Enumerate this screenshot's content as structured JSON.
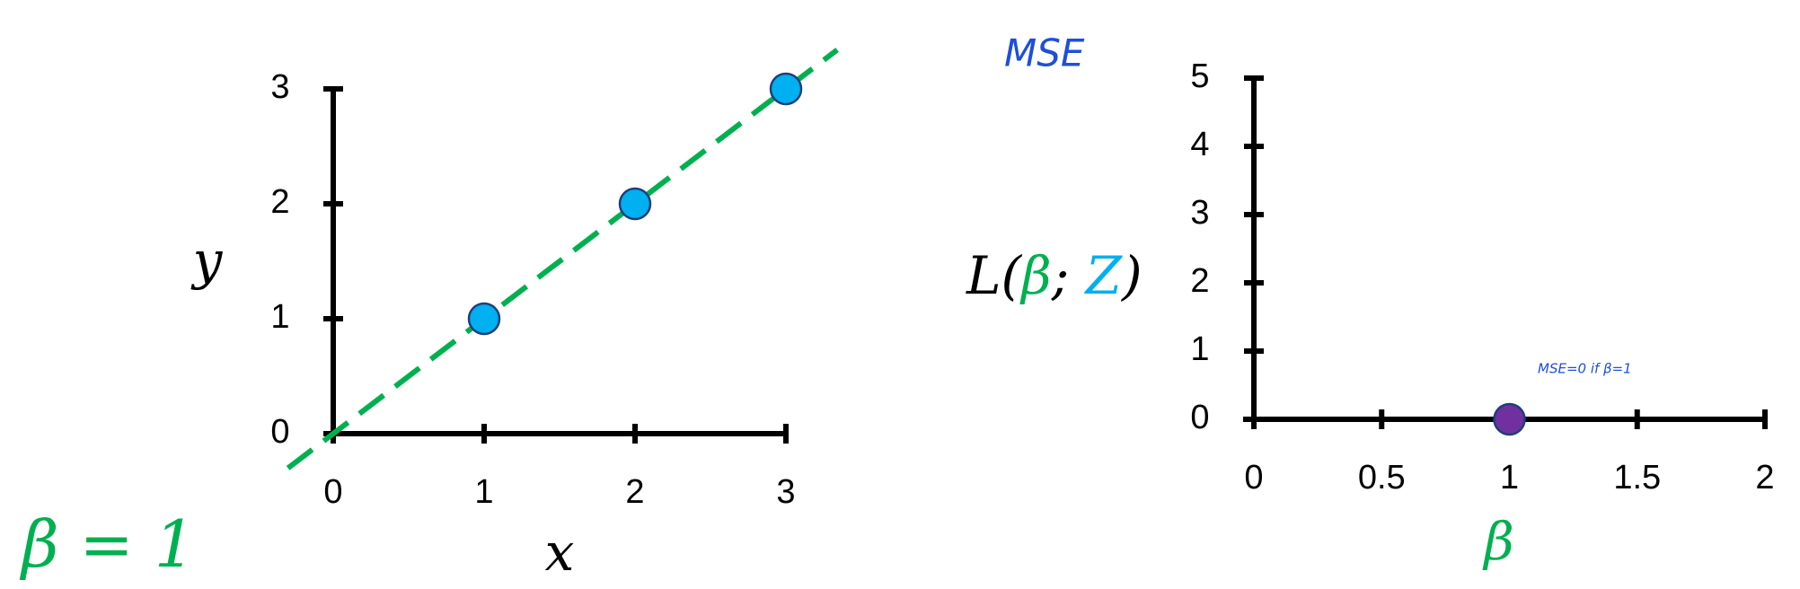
{
  "chart_data": [
    {
      "type": "scatter",
      "x": [
        1,
        2,
        3
      ],
      "y": [
        1,
        2,
        3
      ],
      "color": "#00b0f0",
      "xlim": [
        0,
        3
      ],
      "ylim": [
        0,
        3
      ],
      "xticks": [
        0,
        1,
        2,
        3
      ],
      "yticks": [
        0,
        1,
        2,
        3
      ],
      "xlabel": "x",
      "ylabel": "y",
      "fit_slope": 1,
      "fit_color": "#00b050",
      "fit_label": "β = 1"
    },
    {
      "type": "scatter",
      "x": [
        1
      ],
      "y": [
        0
      ],
      "color": "#7030a0",
      "xlim": [
        0,
        2
      ],
      "ylim": [
        0,
        5
      ],
      "xticks": [
        0,
        0.5,
        1,
        1.5,
        2
      ],
      "yticks": [
        0,
        1,
        2,
        3,
        4,
        5
      ],
      "xlabel": "β",
      "xlabel_color": "#00b050",
      "ylabel_parts": [
        {
          "text": "L(",
          "color": "#000000"
        },
        {
          "text": "β",
          "color": "#00b050"
        },
        {
          "text": "; ",
          "color": "#000000"
        },
        {
          "text": "Z",
          "color": "#00b0f0"
        },
        {
          "text": ")",
          "color": "#000000"
        }
      ],
      "annotations": [
        "MSE",
        "MSE=0 if β=1"
      ]
    }
  ]
}
